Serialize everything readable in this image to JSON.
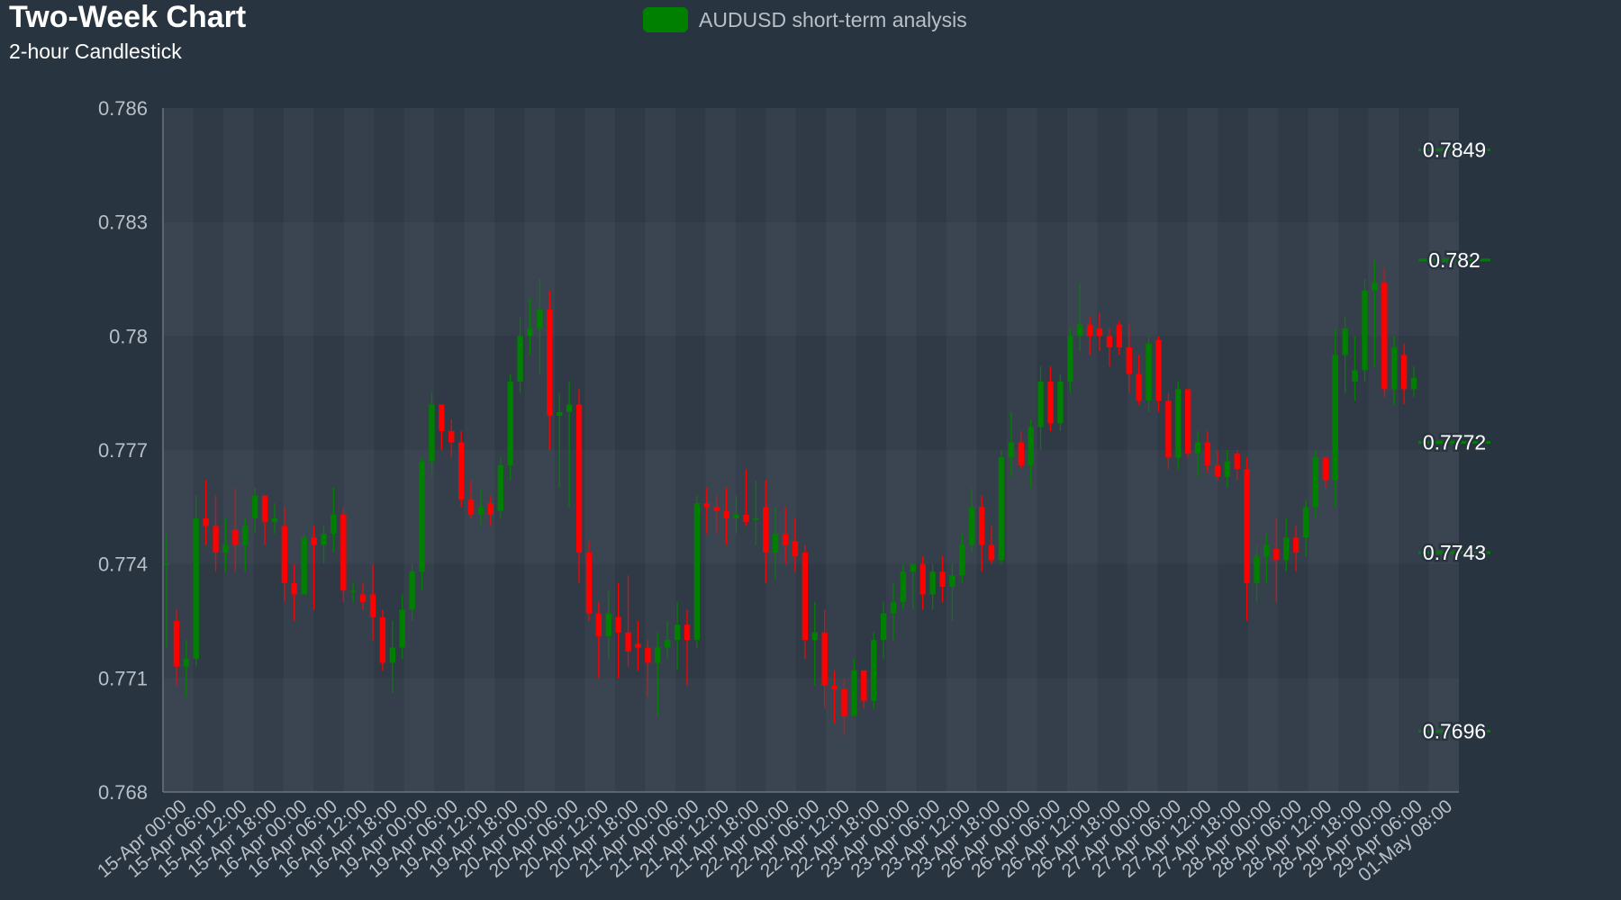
{
  "header": {
    "title": "Two-Week Chart",
    "subtitle": "2-hour Candlestick"
  },
  "legend": {
    "label": "AUDUSD short-term analysis",
    "color": "#008000"
  },
  "colors": {
    "up": "#008000",
    "down": "#ff0000",
    "background": "#283440",
    "axis_text": "#b9bfc6",
    "label_text": "#ffffff"
  },
  "chart_data": {
    "type": "candlestick",
    "title": "Two-Week Chart",
    "subtitle": "2-hour Candlestick",
    "series_name": "AUDUSD short-term analysis",
    "ylim": [
      0.768,
      0.786
    ],
    "yticks": [
      "0.786",
      "0.783",
      "0.78",
      "0.777",
      "0.774",
      "0.771",
      "0.768"
    ],
    "grid": "alternating bands",
    "x_tick_labels": [
      "15-Apr 00:00",
      "15-Apr 06:00",
      "15-Apr 12:00",
      "15-Apr 18:00",
      "16-Apr 00:00",
      "16-Apr 06:00",
      "16-Apr 12:00",
      "16-Apr 18:00",
      "19-Apr 00:00",
      "19-Apr 06:00",
      "19-Apr 12:00",
      "19-Apr 18:00",
      "20-Apr 00:00",
      "20-Apr 06:00",
      "20-Apr 12:00",
      "20-Apr 18:00",
      "21-Apr 00:00",
      "21-Apr 06:00",
      "21-Apr 12:00",
      "21-Apr 18:00",
      "22-Apr 00:00",
      "22-Apr 06:00",
      "22-Apr 12:00",
      "22-Apr 18:00",
      "23-Apr 00:00",
      "23-Apr 06:00",
      "23-Apr 12:00",
      "23-Apr 18:00",
      "26-Apr 00:00",
      "26-Apr 06:00",
      "26-Apr 12:00",
      "26-Apr 18:00",
      "27-Apr 00:00",
      "27-Apr 06:00",
      "27-Apr 12:00",
      "27-Apr 18:00",
      "28-Apr 00:00",
      "28-Apr 06:00",
      "28-Apr 12:00",
      "28-Apr 18:00",
      "29-Apr 00:00",
      "29-Apr 06:00",
      "01-May 08:00"
    ],
    "price_labels": [
      {
        "value": 0.7849,
        "label": "0.7849"
      },
      {
        "value": 0.782,
        "label": "0.782"
      },
      {
        "value": 0.7772,
        "label": "0.7772"
      },
      {
        "value": 0.7743,
        "label": "0.7743"
      },
      {
        "value": 0.7696,
        "label": "0.7696"
      }
    ],
    "candles": [
      [
        0.774,
        0.7748,
        0.7718,
        0.774
      ],
      [
        0.7725,
        0.7728,
        0.7708,
        0.7713
      ],
      [
        0.7713,
        0.772,
        0.7705,
        0.7715
      ],
      [
        0.7715,
        0.7758,
        0.7713,
        0.7752
      ],
      [
        0.7752,
        0.7762,
        0.7745,
        0.775
      ],
      [
        0.775,
        0.7758,
        0.7738,
        0.7743
      ],
      [
        0.7743,
        0.7752,
        0.7738,
        0.7745
      ],
      [
        0.7749,
        0.776,
        0.7738,
        0.7745
      ],
      [
        0.7745,
        0.7752,
        0.7738,
        0.775
      ],
      [
        0.7752,
        0.776,
        0.7748,
        0.7758
      ],
      [
        0.7758,
        0.7758,
        0.7745,
        0.7751
      ],
      [
        0.7751,
        0.7756,
        0.7748,
        0.7752
      ],
      [
        0.775,
        0.7755,
        0.773,
        0.7735
      ],
      [
        0.7735,
        0.774,
        0.7725,
        0.7732
      ],
      [
        0.7732,
        0.7748,
        0.7732,
        0.7747
      ],
      [
        0.7747,
        0.775,
        0.7728,
        0.7745
      ],
      [
        0.7745,
        0.775,
        0.774,
        0.7748
      ],
      [
        0.7748,
        0.776,
        0.7743,
        0.7753
      ],
      [
        0.7753,
        0.7755,
        0.773,
        0.7733
      ],
      [
        0.7733,
        0.7735,
        0.773,
        0.7733
      ],
      [
        0.7732,
        0.7735,
        0.7728,
        0.773
      ],
      [
        0.7732,
        0.774,
        0.772,
        0.7726
      ],
      [
        0.7726,
        0.7728,
        0.7712,
        0.7714
      ],
      [
        0.7714,
        0.7725,
        0.7706,
        0.7718
      ],
      [
        0.7718,
        0.7732,
        0.7715,
        0.7728
      ],
      [
        0.7728,
        0.774,
        0.7725,
        0.7738
      ],
      [
        0.7738,
        0.7768,
        0.7733,
        0.7767
      ],
      [
        0.7767,
        0.7785,
        0.7763,
        0.7782
      ],
      [
        0.7782,
        0.7782,
        0.777,
        0.7775
      ],
      [
        0.7775,
        0.7778,
        0.7768,
        0.7772
      ],
      [
        0.7772,
        0.7775,
        0.7755,
        0.7757
      ],
      [
        0.7757,
        0.7762,
        0.7752,
        0.7753
      ],
      [
        0.7753,
        0.776,
        0.775,
        0.7755
      ],
      [
        0.7756,
        0.7758,
        0.775,
        0.7753
      ],
      [
        0.7754,
        0.7768,
        0.7752,
        0.7766
      ],
      [
        0.7766,
        0.779,
        0.7762,
        0.7788
      ],
      [
        0.7788,
        0.7805,
        0.7785,
        0.78
      ],
      [
        0.78,
        0.781,
        0.7795,
        0.7802
      ],
      [
        0.7802,
        0.7815,
        0.779,
        0.7807
      ],
      [
        0.7807,
        0.7812,
        0.777,
        0.7779
      ],
      [
        0.7779,
        0.7785,
        0.776,
        0.778
      ],
      [
        0.778,
        0.7788,
        0.7755,
        0.7782
      ],
      [
        0.7782,
        0.7786,
        0.7735,
        0.7743
      ],
      [
        0.7743,
        0.7746,
        0.7725,
        0.7727
      ],
      [
        0.7727,
        0.773,
        0.771,
        0.7721
      ],
      [
        0.7721,
        0.7733,
        0.7715,
        0.7727
      ],
      [
        0.7726,
        0.7735,
        0.771,
        0.7722
      ],
      [
        0.7722,
        0.7737,
        0.7713,
        0.7717
      ],
      [
        0.7719,
        0.7725,
        0.7712,
        0.7718
      ],
      [
        0.7718,
        0.772,
        0.7705,
        0.7714
      ],
      [
        0.7714,
        0.7722,
        0.77,
        0.7718
      ],
      [
        0.7718,
        0.7725,
        0.7715,
        0.772
      ],
      [
        0.772,
        0.773,
        0.7712,
        0.7724
      ],
      [
        0.7724,
        0.7728,
        0.7708,
        0.772
      ],
      [
        0.772,
        0.7758,
        0.7718,
        0.7756
      ],
      [
        0.7756,
        0.776,
        0.7748,
        0.7755
      ],
      [
        0.7755,
        0.7758,
        0.7748,
        0.7754
      ],
      [
        0.7754,
        0.776,
        0.7745,
        0.7752
      ],
      [
        0.7752,
        0.7758,
        0.7748,
        0.7753
      ],
      [
        0.7753,
        0.7765,
        0.775,
        0.7751
      ],
      [
        0.7752,
        0.7762,
        0.7745,
        0.7752
      ],
      [
        0.7755,
        0.7762,
        0.7735,
        0.7743
      ],
      [
        0.7743,
        0.7755,
        0.7736,
        0.7748
      ],
      [
        0.7748,
        0.7755,
        0.774,
        0.7745
      ],
      [
        0.7746,
        0.7752,
        0.7738,
        0.7742
      ],
      [
        0.7743,
        0.7745,
        0.7715,
        0.772
      ],
      [
        0.772,
        0.773,
        0.7708,
        0.7722
      ],
      [
        0.7722,
        0.7728,
        0.7702,
        0.7708
      ],
      [
        0.7708,
        0.7712,
        0.7698,
        0.7707
      ],
      [
        0.7707,
        0.771,
        0.7695,
        0.77
      ],
      [
        0.77,
        0.7715,
        0.77,
        0.7712
      ],
      [
        0.7712,
        0.7712,
        0.7702,
        0.7704
      ],
      [
        0.7704,
        0.7722,
        0.7702,
        0.772
      ],
      [
        0.772,
        0.773,
        0.7715,
        0.7727
      ],
      [
        0.7727,
        0.7735,
        0.772,
        0.773
      ],
      [
        0.773,
        0.774,
        0.7728,
        0.7738
      ],
      [
        0.7738,
        0.774,
        0.7728,
        0.774
      ],
      [
        0.774,
        0.7742,
        0.7728,
        0.7732
      ],
      [
        0.7732,
        0.774,
        0.7728,
        0.7738
      ],
      [
        0.7738,
        0.7742,
        0.773,
        0.7734
      ],
      [
        0.7734,
        0.774,
        0.7725,
        0.7737
      ],
      [
        0.7737,
        0.7748,
        0.7735,
        0.7745
      ],
      [
        0.7745,
        0.776,
        0.7743,
        0.7755
      ],
      [
        0.7755,
        0.7758,
        0.7738,
        0.7745
      ],
      [
        0.7745,
        0.775,
        0.774,
        0.7741
      ],
      [
        0.7741,
        0.777,
        0.774,
        0.7768
      ],
      [
        0.7768,
        0.778,
        0.7763,
        0.7772
      ],
      [
        0.7772,
        0.7775,
        0.7765,
        0.7766
      ],
      [
        0.7766,
        0.7778,
        0.776,
        0.7776
      ],
      [
        0.7776,
        0.7792,
        0.777,
        0.7788
      ],
      [
        0.7788,
        0.7792,
        0.7775,
        0.7777
      ],
      [
        0.7777,
        0.779,
        0.7775,
        0.7788
      ],
      [
        0.7788,
        0.7802,
        0.7785,
        0.78
      ],
      [
        0.78,
        0.7814,
        0.7796,
        0.7803
      ],
      [
        0.7803,
        0.7805,
        0.7795,
        0.78
      ],
      [
        0.7802,
        0.7806,
        0.7796,
        0.78
      ],
      [
        0.78,
        0.7802,
        0.7792,
        0.7797
      ],
      [
        0.7803,
        0.7804,
        0.7795,
        0.7797
      ],
      [
        0.7797,
        0.7803,
        0.7785,
        0.779
      ],
      [
        0.779,
        0.7795,
        0.7782,
        0.7783
      ],
      [
        0.7783,
        0.78,
        0.778,
        0.7798
      ],
      [
        0.7799,
        0.78,
        0.778,
        0.7783
      ],
      [
        0.7783,
        0.7785,
        0.7765,
        0.7768
      ],
      [
        0.7768,
        0.7788,
        0.7765,
        0.7786
      ],
      [
        0.7786,
        0.7786,
        0.7768,
        0.7769
      ],
      [
        0.7769,
        0.7775,
        0.7763,
        0.7772
      ],
      [
        0.7772,
        0.7775,
        0.7764,
        0.7766
      ],
      [
        0.7766,
        0.777,
        0.7762,
        0.7763
      ],
      [
        0.7763,
        0.777,
        0.776,
        0.7767
      ],
      [
        0.7769,
        0.777,
        0.7762,
        0.7765
      ],
      [
        0.7765,
        0.7768,
        0.7725,
        0.7735
      ],
      [
        0.7735,
        0.7745,
        0.773,
        0.7742
      ],
      [
        0.7742,
        0.7748,
        0.7735,
        0.7745
      ],
      [
        0.7744,
        0.7752,
        0.773,
        0.7741
      ],
      [
        0.7741,
        0.7752,
        0.7738,
        0.7747
      ],
      [
        0.7747,
        0.775,
        0.7738,
        0.7743
      ],
      [
        0.7747,
        0.7757,
        0.7742,
        0.7755
      ],
      [
        0.7755,
        0.777,
        0.7752,
        0.7768
      ],
      [
        0.7768,
        0.7768,
        0.776,
        0.7762
      ],
      [
        0.7762,
        0.7802,
        0.7755,
        0.7795
      ],
      [
        0.7795,
        0.7805,
        0.7785,
        0.7802
      ],
      [
        0.7788,
        0.78,
        0.7783,
        0.7791
      ],
      [
        0.7791,
        0.7815,
        0.7788,
        0.7812
      ],
      [
        0.7812,
        0.782,
        0.7792,
        0.7814
      ],
      [
        0.7814,
        0.7818,
        0.7784,
        0.7786
      ],
      [
        0.7786,
        0.78,
        0.7782,
        0.7797
      ],
      [
        0.7795,
        0.7798,
        0.7782,
        0.7786
      ],
      [
        0.7786,
        0.7792,
        0.7784,
        0.7789
      ]
    ]
  }
}
